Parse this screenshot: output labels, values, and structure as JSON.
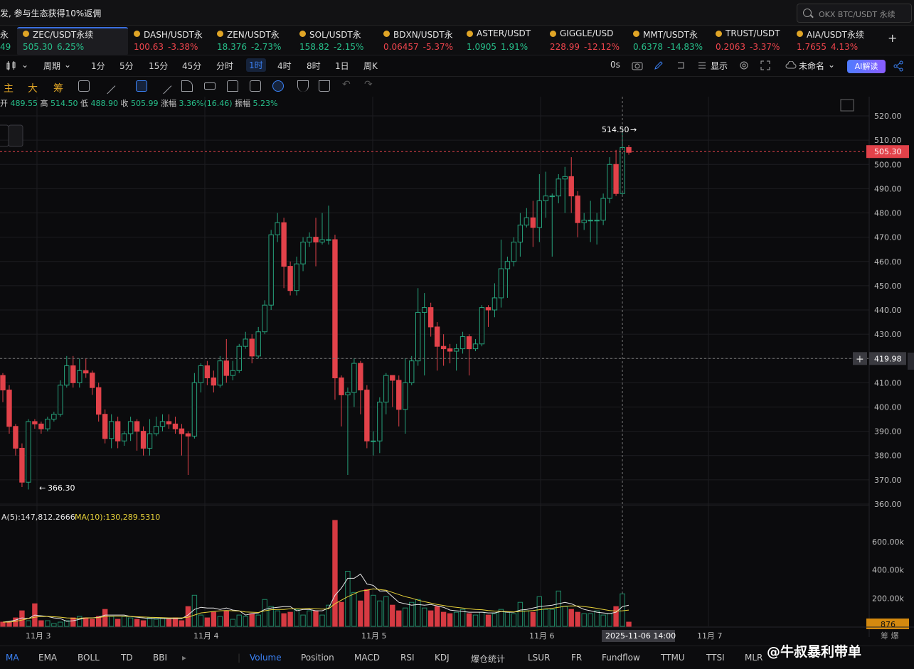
{
  "promo": "发, 参与生态获得10%返佣",
  "search": {
    "placeholder": "OKX BTC/USDT 永续"
  },
  "tickers": [
    {
      "sym": "永",
      "price": "49",
      "chg": "",
      "dir": "up"
    },
    {
      "sym": "ZEC/USDT永续",
      "price": "505.30",
      "chg": "6.25%",
      "dir": "up"
    },
    {
      "sym": "DASH/USDT永",
      "price": "100.63",
      "chg": "-3.38%",
      "dir": "dn"
    },
    {
      "sym": "ZEN/USDT永",
      "price": "18.376",
      "chg": "-2.73%",
      "dir": "up"
    },
    {
      "sym": "SOL/USDT永",
      "price": "158.82",
      "chg": "-2.15%",
      "dir": "up"
    },
    {
      "sym": "BDXN/USDT永",
      "price": "0.06457",
      "chg": "-5.37%",
      "dir": "dn"
    },
    {
      "sym": "ASTER/USDT",
      "price": "1.0905",
      "chg": "1.91%",
      "dir": "up"
    },
    {
      "sym": "GIGGLE/USD",
      "price": "228.99",
      "chg": "-12.12%",
      "dir": "dn"
    },
    {
      "sym": "MMT/USDT永",
      "price": "0.6378",
      "chg": "-14.83%",
      "dir": "up"
    },
    {
      "sym": "TRUST/USDT",
      "price": "0.2063",
      "chg": "-3.37%",
      "dir": "dn"
    },
    {
      "sym": "AIA/USDT永续",
      "price": "1.7655",
      "chg": "4.13%",
      "dir": "dn"
    }
  ],
  "toolbar": {
    "period": "周期",
    "intervals": [
      "1分",
      "5分",
      "15分",
      "45分",
      "分时",
      "1时",
      "4时",
      "8时",
      "1日",
      "周K"
    ],
    "selected_interval": "1时",
    "countdown": "0s",
    "display": "显示",
    "layout_name": "未命名",
    "ai": "AI解读"
  },
  "draw_labels": [
    "主",
    "大",
    "筹"
  ],
  "ohlc": {
    "open_label": "开",
    "open": "489.55",
    "high_label": "高",
    "high": "514.50",
    "low_label": "低",
    "low": "488.90",
    "close_label": "收",
    "close": "505.99",
    "range_label": "涨幅",
    "range": "3.36%(16.46)",
    "amp_label": "振幅",
    "amp": "5.23%"
  },
  "volume_legend": {
    "ma5": "A(5):147,812.2666",
    "ma10": "MA(10):130,289.5310"
  },
  "chart_data": {
    "type": "candlestick",
    "y_axis": [
      520,
      510,
      500,
      490,
      480,
      470,
      460,
      450,
      440,
      430,
      420,
      410,
      400,
      390,
      380,
      370,
      360
    ],
    "y_axis_labels": [
      "520.00",
      "510.00",
      "500.00",
      "490.00",
      "480.00",
      "470.00",
      "460.00",
      "450.00",
      "440.00",
      "430.00",
      "419.98",
      "410.00",
      "400.00",
      "390.00",
      "380.00",
      "370.00",
      "360.00"
    ],
    "ylim": [
      355,
      525
    ],
    "last_price": "505.30",
    "crosshair_price": "419.98",
    "crosshair_time": "2025-11-06 14:00",
    "high_marker": "514.50",
    "low_marker": "366.30",
    "x_labels": [
      "11月 3",
      "11月 4",
      "11月 5",
      "11月 6",
      "11月 7"
    ],
    "volume_axis_labels": [
      "600.00k",
      "400.00k",
      "200.00k"
    ],
    "current_volume": "876",
    "candles": [
      [
        413,
        407,
        402,
        414
      ],
      [
        407,
        392,
        389,
        409
      ],
      [
        392,
        383,
        380,
        393
      ],
      [
        383,
        369,
        367,
        385
      ],
      [
        369,
        394,
        366,
        395
      ],
      [
        394,
        393,
        391,
        395
      ],
      [
        393,
        391,
        389,
        394
      ],
      [
        391,
        395,
        390,
        396
      ],
      [
        395,
        397,
        394,
        398
      ],
      [
        397,
        409,
        396,
        411
      ],
      [
        409,
        417,
        408,
        421
      ],
      [
        417,
        410,
        408,
        421
      ],
      [
        410,
        415,
        408,
        420
      ],
      [
        415,
        414,
        412,
        420
      ],
      [
        414,
        408,
        405,
        415
      ],
      [
        408,
        397,
        394,
        410
      ],
      [
        397,
        387,
        385,
        399
      ],
      [
        387,
        394,
        383,
        397
      ],
      [
        394,
        386,
        383,
        396
      ],
      [
        386,
        389,
        384,
        390
      ],
      [
        389,
        394,
        386,
        396
      ],
      [
        394,
        390,
        382,
        395
      ],
      [
        390,
        383,
        380,
        392
      ],
      [
        383,
        389,
        380,
        395
      ],
      [
        389,
        392,
        388,
        396
      ],
      [
        392,
        394,
        390,
        397
      ],
      [
        394,
        393,
        391,
        397
      ],
      [
        393,
        391,
        389,
        396
      ],
      [
        391,
        389,
        380,
        393
      ],
      [
        389,
        388,
        372,
        390
      ],
      [
        388,
        410,
        387,
        414
      ],
      [
        410,
        417,
        406,
        418
      ],
      [
        417,
        412,
        409,
        419
      ],
      [
        412,
        409,
        406,
        415
      ],
      [
        409,
        419,
        408,
        421
      ],
      [
        419,
        413,
        410,
        428
      ],
      [
        413,
        415,
        411,
        419
      ],
      [
        415,
        425,
        414,
        426
      ],
      [
        425,
        428,
        424,
        431
      ],
      [
        428,
        421,
        418,
        430
      ],
      [
        421,
        431,
        420,
        433
      ],
      [
        431,
        442,
        430,
        444
      ],
      [
        442,
        471,
        440,
        473
      ],
      [
        471,
        476,
        468,
        480
      ],
      [
        476,
        458,
        449,
        478
      ],
      [
        458,
        448,
        446,
        460
      ],
      [
        448,
        459,
        446,
        462
      ],
      [
        459,
        468,
        456,
        470
      ],
      [
        468,
        470,
        466,
        472
      ],
      [
        470,
        468,
        458,
        478
      ],
      [
        468,
        469,
        467,
        480
      ],
      [
        469,
        469,
        467,
        483
      ],
      [
        469,
        412,
        403,
        471
      ],
      [
        412,
        405,
        392,
        413
      ],
      [
        405,
        406,
        372,
        408
      ],
      [
        406,
        418,
        400,
        420
      ],
      [
        418,
        407,
        397,
        419
      ],
      [
        407,
        386,
        383,
        409
      ],
      [
        386,
        386,
        380,
        390
      ],
      [
        386,
        402,
        381,
        404
      ],
      [
        402,
        413,
        397,
        414
      ],
      [
        413,
        411,
        400,
        413
      ],
      [
        411,
        399,
        392,
        413
      ],
      [
        399,
        410,
        389,
        420
      ],
      [
        410,
        419,
        409,
        421
      ],
      [
        419,
        439,
        417,
        449
      ],
      [
        439,
        441,
        413,
        447
      ],
      [
        441,
        433,
        429,
        443
      ],
      [
        433,
        425,
        415,
        435
      ],
      [
        425,
        424,
        417,
        430
      ],
      [
        424,
        423,
        418,
        426
      ],
      [
        423,
        424,
        415,
        426
      ],
      [
        424,
        429,
        422,
        431
      ],
      [
        429,
        424,
        413,
        430
      ],
      [
        424,
        426,
        423,
        428
      ],
      [
        426,
        441,
        425,
        442
      ],
      [
        441,
        440,
        433,
        442
      ],
      [
        440,
        445,
        437,
        451
      ],
      [
        445,
        457,
        441,
        469
      ],
      [
        457,
        460,
        445,
        462
      ],
      [
        460,
        468,
        458,
        470
      ],
      [
        468,
        475,
        462,
        480
      ],
      [
        475,
        478,
        474,
        482
      ],
      [
        478,
        474,
        466,
        485
      ],
      [
        474,
        485,
        468,
        496
      ],
      [
        485,
        487,
        478,
        497
      ],
      [
        487,
        487,
        462,
        488
      ],
      [
        487,
        494,
        484,
        496
      ],
      [
        494,
        495,
        480,
        499
      ],
      [
        495,
        487,
        480,
        503
      ],
      [
        487,
        476,
        470,
        489
      ],
      [
        476,
        477,
        473,
        480
      ],
      [
        477,
        477,
        468,
        485
      ],
      [
        477,
        477,
        467,
        480
      ],
      [
        477,
        486,
        475,
        488
      ],
      [
        486,
        500,
        484,
        503
      ],
      [
        500,
        488,
        487,
        506
      ],
      [
        488,
        507,
        487,
        514
      ],
      [
        507,
        505,
        504,
        508
      ]
    ],
    "volumes": [
      30,
      30,
      60,
      110,
      40,
      160,
      40,
      40,
      20,
      30,
      40,
      60,
      70,
      60,
      50,
      70,
      120,
      70,
      50,
      70,
      60,
      50,
      40,
      60,
      50,
      60,
      50,
      60,
      40,
      140,
      220,
      80,
      60,
      100,
      70,
      110,
      50,
      80,
      70,
      90,
      80,
      190,
      140,
      110,
      90,
      100,
      120,
      80,
      110,
      110,
      80,
      150,
      750,
      170,
      390,
      240,
      180,
      260,
      220,
      180,
      210,
      150,
      110,
      130,
      170,
      190,
      130,
      110,
      140,
      100,
      90,
      100,
      120,
      90,
      80,
      100,
      80,
      90,
      120,
      100,
      90,
      170,
      110,
      100,
      210,
      120,
      120,
      250,
      140,
      120,
      100,
      90,
      90,
      110,
      80,
      90,
      140,
      230,
      30
    ],
    "ma5": [
      30,
      35,
      45,
      60,
      55,
      80,
      75,
      70,
      60,
      55,
      35,
      40,
      50,
      60,
      60,
      65,
      80,
      80,
      80,
      80,
      70,
      65,
      60,
      55,
      60,
      55,
      55,
      55,
      55,
      80,
      120,
      135,
      130,
      130,
      120,
      130,
      115,
      110,
      80,
      90,
      95,
      120,
      130,
      135,
      140,
      140,
      110,
      120,
      120,
      110,
      110,
      130,
      220,
      270,
      340,
      340,
      370,
      300,
      290,
      250,
      250,
      210,
      170,
      160,
      150,
      155,
      150,
      155,
      145,
      135,
      115,
      110,
      105,
      100,
      100,
      100,
      95,
      95,
      105,
      100,
      100,
      115,
      120,
      130,
      140,
      145,
      150,
      160,
      170,
      160,
      140,
      120,
      110,
      100,
      95,
      90,
      100,
      140,
      150
    ],
    "ma10": [
      30,
      30,
      35,
      45,
      55,
      65,
      70,
      70,
      68,
      65,
      60,
      58,
      58,
      60,
      60,
      62,
      70,
      72,
      72,
      72,
      70,
      68,
      66,
      64,
      63,
      62,
      60,
      60,
      60,
      65,
      80,
      95,
      100,
      105,
      110,
      112,
      110,
      108,
      102,
      100,
      98,
      110,
      118,
      120,
      120,
      125,
      125,
      125,
      128,
      125,
      122,
      125,
      160,
      185,
      210,
      230,
      250,
      255,
      265,
      260,
      255,
      240,
      225,
      210,
      200,
      185,
      175,
      165,
      155,
      148,
      140,
      135,
      130,
      125,
      120,
      118,
      112,
      108,
      106,
      104,
      102,
      105,
      108,
      112,
      118,
      124,
      128,
      135,
      142,
      145,
      144,
      140,
      135,
      128,
      120,
      112,
      108,
      110,
      115
    ]
  },
  "indicators": [
    "MA",
    "EMA",
    "BOLL",
    "TD",
    "BBI",
    "Volume",
    "Position",
    "MACD",
    "RSI",
    "KDJ",
    "爆仓统计",
    "LSUR",
    "FR",
    "Fundflow",
    "TTMU",
    "TTSI",
    "MLR"
  ],
  "indicator_selected": [
    "MA",
    "Volume"
  ],
  "axis_bottom_right": "筹 爆",
  "watermark": "@牛叔暴利带单"
}
